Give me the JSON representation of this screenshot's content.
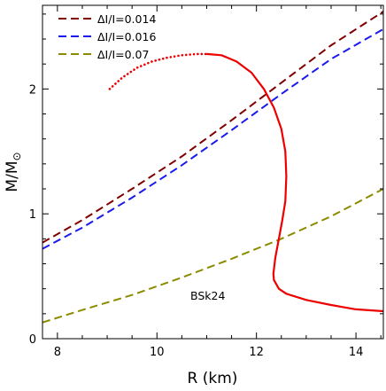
{
  "chart_data": {
    "type": "line",
    "xlabel": "R (km)",
    "ylabel_main": "M/M",
    "ylabel_sub": "⊙",
    "xlim": [
      7.7,
      14.55
    ],
    "ylim": [
      0,
      2.67
    ],
    "xticks": [
      8,
      10,
      12,
      14
    ],
    "yticks": [
      0,
      1,
      2
    ],
    "grid": false,
    "legend_position": "top-left",
    "annotation": "BSk24",
    "series": [
      {
        "name": "ΔI/I=0.014",
        "color": "#800000",
        "style": "dashed",
        "x": [
          7.7,
          8.5,
          9.5,
          10.5,
          11.5,
          12.5,
          13.5,
          14.55
        ],
        "y": [
          0.77,
          0.95,
          1.2,
          1.46,
          1.75,
          2.05,
          2.35,
          2.62
        ]
      },
      {
        "name": "ΔI/I=0.016",
        "color": "#1a1aee",
        "style": "dashed",
        "x": [
          7.7,
          8.5,
          9.5,
          10.5,
          11.5,
          12.5,
          13.5,
          14.55
        ],
        "y": [
          0.72,
          0.89,
          1.13,
          1.39,
          1.67,
          1.96,
          2.24,
          2.48
        ]
      },
      {
        "name": "ΔI/I=0.07",
        "color": "#8b8b00",
        "style": "dashed",
        "x": [
          7.7,
          8.5,
          9.5,
          10.5,
          11.5,
          12.5,
          13.5,
          14.55
        ],
        "y": [
          0.13,
          0.23,
          0.35,
          0.49,
          0.64,
          0.8,
          0.98,
          1.2
        ]
      },
      {
        "name": "",
        "color": "#ee0000",
        "style": "dotted",
        "x": [
          9.05,
          9.3,
          9.6,
          9.9,
          10.2,
          10.5,
          10.8,
          11.0
        ],
        "y": [
          2.0,
          2.09,
          2.17,
          2.22,
          2.25,
          2.27,
          2.28,
          2.28
        ]
      },
      {
        "name": "",
        "color": "#ee0000",
        "style": "solid",
        "x": [
          11.0,
          11.3,
          11.6,
          11.9,
          12.15,
          12.35,
          12.5,
          12.58,
          12.6,
          12.58,
          12.52,
          12.45,
          12.38,
          12.34,
          12.35,
          12.45,
          12.6,
          13.0,
          13.5,
          14.0,
          14.55
        ],
        "y": [
          2.28,
          2.27,
          2.22,
          2.13,
          2.0,
          1.85,
          1.68,
          1.5,
          1.3,
          1.1,
          0.95,
          0.8,
          0.65,
          0.52,
          0.47,
          0.4,
          0.36,
          0.31,
          0.27,
          0.235,
          0.22
        ]
      }
    ]
  }
}
